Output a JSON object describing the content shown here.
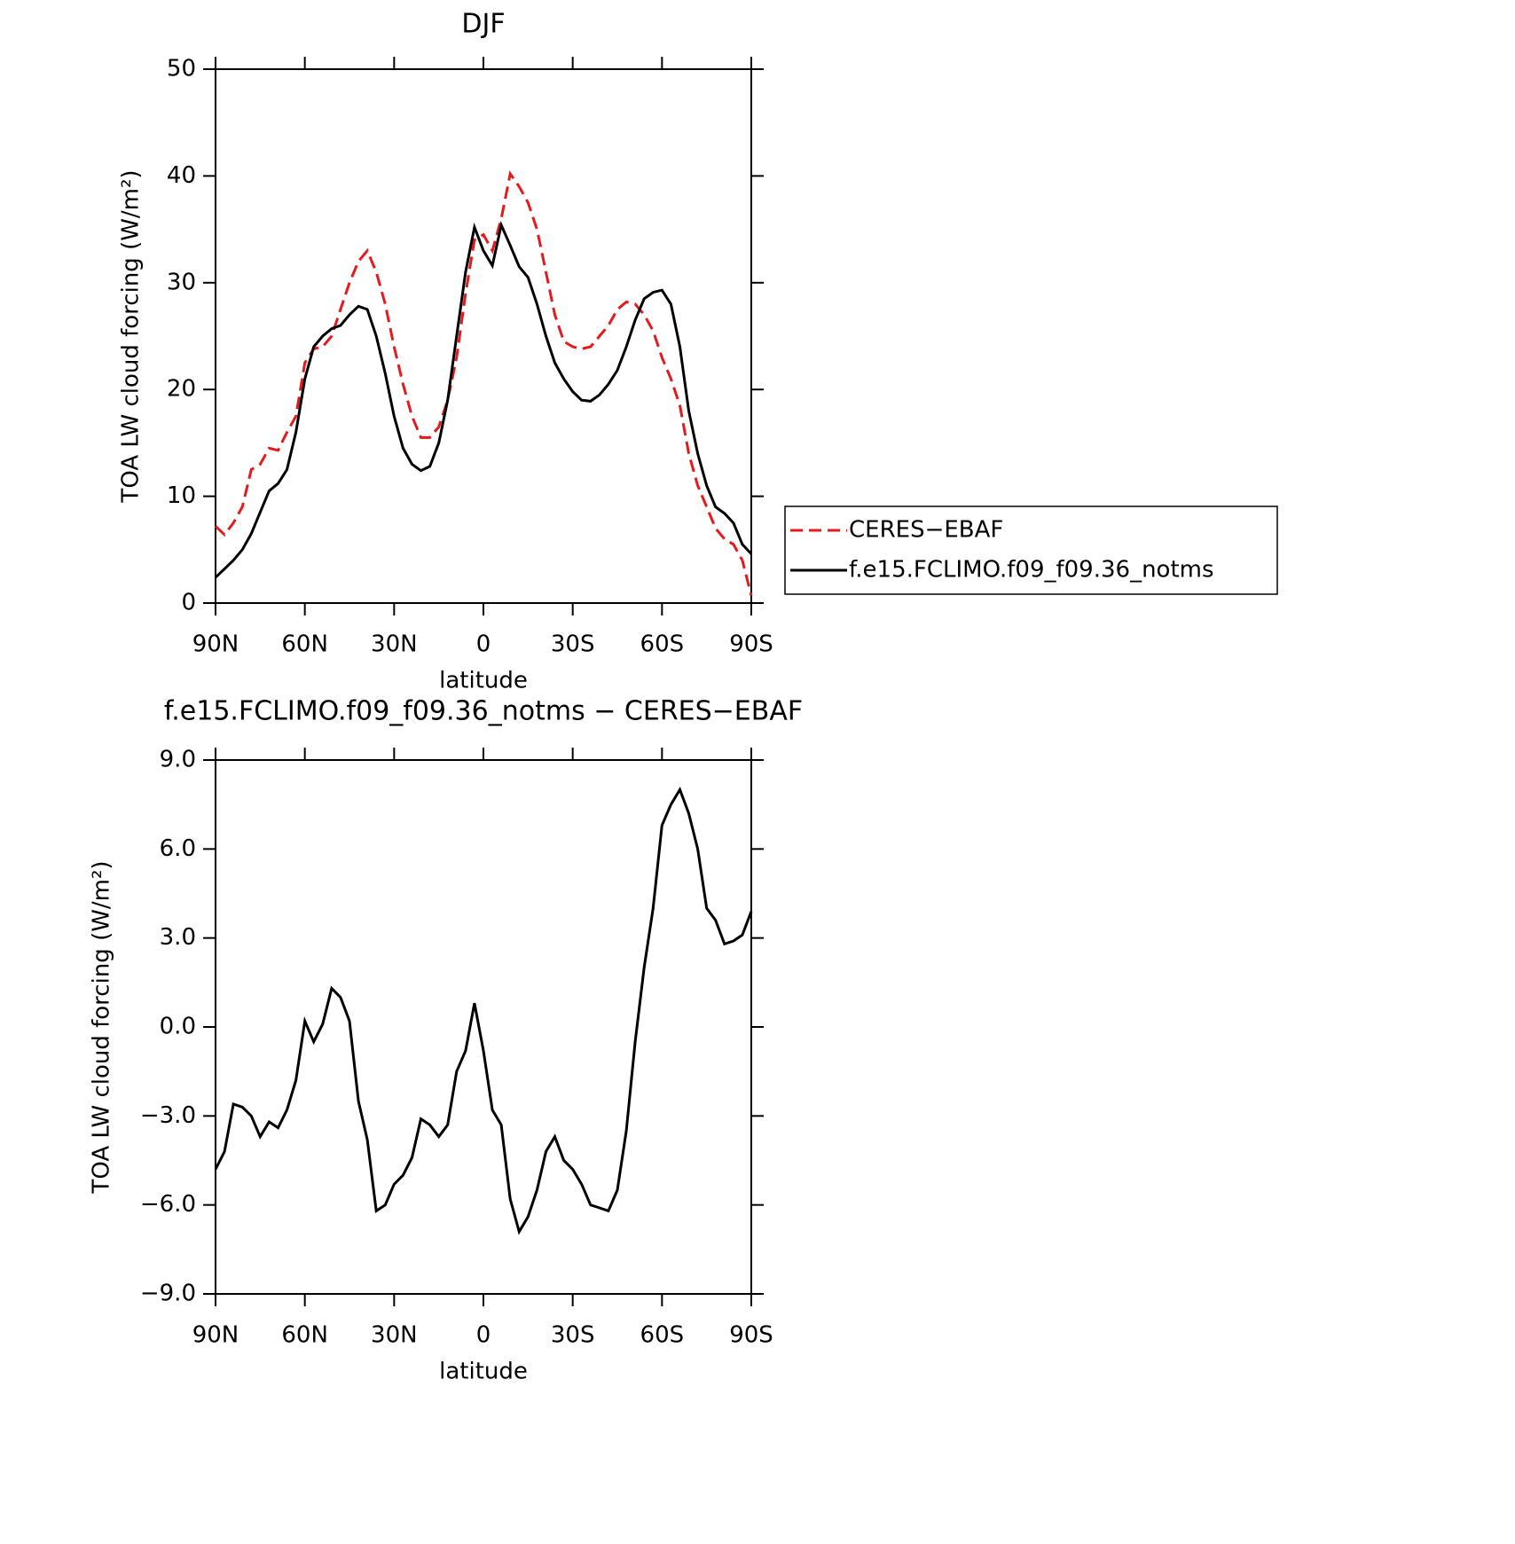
{
  "chart_data": [
    {
      "type": "line",
      "title": "DJF",
      "x_label": "latitude",
      "y_label": "TOA LW cloud forcing (W/m²)",
      "x": [
        90,
        87,
        84,
        81,
        78,
        75,
        72,
        69,
        66,
        63,
        60,
        57,
        54,
        51,
        48,
        45,
        42,
        39,
        36,
        33,
        30,
        27,
        24,
        21,
        18,
        15,
        12,
        9,
        6,
        3,
        0,
        -3,
        -6,
        -9,
        -12,
        -15,
        -18,
        -21,
        -24,
        -27,
        -30,
        -33,
        -36,
        -39,
        -42,
        -45,
        -48,
        -51,
        -54,
        -57,
        -60,
        -63,
        -66,
        -69,
        -72,
        -75,
        -78,
        -81,
        -84,
        -87,
        -90
      ],
      "series": [
        {
          "name": "CERES−EBAF",
          "color": "#e41a1c",
          "style": "dashed",
          "values": [
            7.2,
            6.4,
            7.5,
            9,
            12.5,
            13,
            14.5,
            14.3,
            16,
            17.5,
            22.5,
            23.8,
            24,
            25,
            27.5,
            30,
            32,
            33,
            31,
            28,
            24,
            20.5,
            17.5,
            15.5,
            15.5,
            16.5,
            19,
            23,
            29,
            34,
            34.5,
            33,
            36,
            40.2,
            39,
            37.5,
            35,
            31,
            27,
            24.5,
            24,
            23.8,
            24,
            25,
            26,
            27.5,
            28.2,
            28,
            27,
            25.5,
            23,
            21,
            18.5,
            14,
            11,
            9,
            7,
            6,
            5.5,
            4,
            0.7
          ]
        },
        {
          "name": "f.e15.FCLIMO.f09_f09.36_notms",
          "color": "#000000",
          "style": "solid",
          "values": [
            2.4,
            3.2,
            4,
            5,
            6.5,
            8.5,
            10.5,
            11.2,
            12.5,
            16,
            21,
            24,
            25,
            25.7,
            26,
            27,
            27.8,
            27.5,
            25,
            21.5,
            17.5,
            14.5,
            13,
            12.4,
            12.8,
            15,
            19,
            25,
            31,
            35.2,
            33,
            31.6,
            35.4,
            33.5,
            31.5,
            30.5,
            28,
            25,
            22.5,
            21,
            19.8,
            19,
            18.9,
            19.5,
            20.5,
            21.8,
            24,
            26.5,
            28.5,
            29.1,
            29.3,
            28,
            24,
            18,
            14,
            11,
            9,
            8.4,
            7.5,
            5.5,
            4.6
          ]
        }
      ],
      "xlim": [
        90,
        -90
      ],
      "xticks": [
        {
          "value": 90,
          "label": "90N"
        },
        {
          "value": 60,
          "label": "60N"
        },
        {
          "value": 30,
          "label": "30N"
        },
        0,
        {
          "value": -30,
          "label": "30S"
        },
        {
          "value": -60,
          "label": "60S"
        },
        {
          "value": -90,
          "label": "90S"
        }
      ],
      "ylim": [
        0,
        50
      ],
      "yticks": [
        0,
        10,
        20,
        30,
        40,
        50
      ],
      "legend": "right"
    },
    {
      "type": "line",
      "title": "f.e15.FCLIMO.f09_f09.36_notms − CERES−EBAF",
      "x_label": "latitude",
      "y_label": "TOA LW cloud forcing (W/m²)",
      "x": [
        90,
        87,
        84,
        81,
        78,
        75,
        72,
        69,
        66,
        63,
        60,
        57,
        54,
        51,
        48,
        45,
        42,
        39,
        36,
        33,
        30,
        27,
        24,
        21,
        18,
        15,
        12,
        9,
        6,
        3,
        0,
        -3,
        -6,
        -9,
        -12,
        -15,
        -18,
        -21,
        -24,
        -27,
        -30,
        -33,
        -36,
        -39,
        -42,
        -45,
        -48,
        -51,
        -54,
        -57,
        -60,
        -63,
        -66,
        -69,
        -72,
        -75,
        -78,
        -81,
        -84,
        -87,
        -90
      ],
      "series": [
        {
          "color": "#000000",
          "style": "solid",
          "values": [
            -4.8,
            -4.2,
            -2.6,
            -2.7,
            -3,
            -3.7,
            -3.2,
            -3.4,
            -2.8,
            -1.8,
            0.2,
            -0.5,
            0.1,
            1.3,
            1,
            0.2,
            -2.5,
            -3.8,
            -6.2,
            -6,
            -5.3,
            -5,
            -4.4,
            -3.1,
            -3.3,
            -3.7,
            -3.3,
            -1.5,
            -0.8,
            0.8,
            -0.8,
            -2.8,
            -3.3,
            -5.8,
            -6.9,
            -6.4,
            -5.5,
            -4.2,
            -3.7,
            -4.5,
            -4.8,
            -5.3,
            -6,
            -6.1,
            -6.2,
            -5.5,
            -3.5,
            -0.5,
            2,
            4,
            6.8,
            7.5,
            8,
            7.2,
            6,
            4,
            3.6,
            2.8,
            2.9,
            3.1,
            3.9
          ]
        }
      ],
      "xlim": [
        90,
        -90
      ],
      "xticks": [
        {
          "value": 90,
          "label": "90N"
        },
        {
          "value": 60,
          "label": "60N"
        },
        {
          "value": 30,
          "label": "30N"
        },
        0,
        {
          "value": -30,
          "label": "30S"
        },
        {
          "value": -60,
          "label": "60S"
        },
        {
          "value": -90,
          "label": "90S"
        }
      ],
      "ylim": [
        -9,
        9
      ],
      "yticks": [
        {
          "value": -9,
          "label": "−9.0"
        },
        {
          "value": -6,
          "label": "−6.0"
        },
        {
          "value": -3,
          "label": "−3.0"
        },
        {
          "value": 0,
          "label": "0.0"
        },
        {
          "value": 3,
          "label": "3.0"
        },
        {
          "value": 6,
          "label": "6.0"
        },
        {
          "value": 9,
          "label": "9.0"
        }
      ]
    }
  ]
}
